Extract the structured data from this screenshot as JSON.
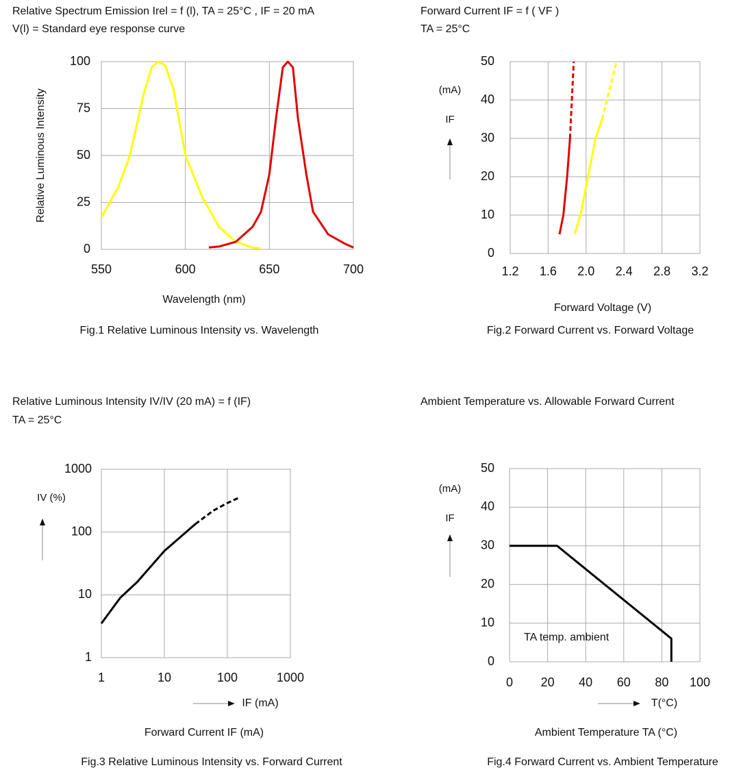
{
  "chart_data": [
    {
      "type": "line",
      "title": "Relative Spectrum Emission Irel = f (l), TA = 25°C , IF = 20 mA",
      "subtitle": "V(l) = Standard eye response curve",
      "ylabel": "Relative Luminous Intensity",
      "xlabel": "Wavelength (nm)",
      "caption": "Fig.1 Relative Luminous Intensity vs. Wavelength",
      "xlim": [
        550,
        700
      ],
      "xticks": [
        550,
        600,
        650,
        700
      ],
      "ylim": [
        0,
        100
      ],
      "yticks": [
        0,
        25,
        50,
        75,
        100
      ],
      "grid": true,
      "log": false,
      "series": [
        {
          "color": "#ffff00",
          "dash": false,
          "x": [
            550,
            560,
            567,
            575,
            580,
            584,
            588,
            593,
            600,
            610,
            620,
            630,
            640,
            645
          ],
          "values": [
            17,
            33,
            50,
            82,
            97,
            100,
            98,
            85,
            50,
            28,
            12,
            4,
            1,
            0.5
          ]
        },
        {
          "color": "#e00000",
          "dash": false,
          "x": [
            614,
            620,
            630,
            640,
            645,
            650,
            654,
            658,
            661,
            664,
            667,
            672,
            676,
            685,
            695,
            700
          ],
          "values": [
            1,
            1.5,
            4,
            12,
            20,
            40,
            70,
            97,
            100,
            97,
            70,
            40,
            20,
            8,
            3,
            1
          ]
        }
      ]
    },
    {
      "type": "line",
      "title": "Forward Current IF = f ( VF )",
      "subtitle": "TA = 25°C",
      "y_unit": "(mA)",
      "y_symbol": "IF",
      "xlabel": "Forward Voltage (V)",
      "caption": "Fig.2 Forward Current vs. Forward Voltage",
      "xlim": [
        1.2,
        3.2
      ],
      "xticks": [
        1.2,
        1.6,
        {
          "value": 2,
          "label": "2.0"
        },
        2.4,
        2.8,
        3.2
      ],
      "ylim": [
        0,
        50
      ],
      "yticks": [
        0,
        10,
        20,
        30,
        40,
        50
      ],
      "grid": true,
      "log": false,
      "series": [
        {
          "color": "#e00000",
          "dash": false,
          "x": [
            1.72,
            1.76,
            1.8,
            1.83
          ],
          "values": [
            5,
            10,
            20,
            30
          ]
        },
        {
          "color": "#e00000",
          "dash": true,
          "x": [
            1.83,
            1.85,
            1.87
          ],
          "values": [
            30,
            40,
            50
          ]
        },
        {
          "color": "#ffff00",
          "dash": false,
          "x": [
            1.88,
            1.94,
            2.02,
            2.1,
            2.17
          ],
          "values": [
            5,
            10,
            20,
            30,
            35
          ]
        },
        {
          "color": "#ffff00",
          "dash": true,
          "x": [
            2.17,
            2.24,
            2.32
          ],
          "values": [
            35,
            42,
            50
          ]
        }
      ]
    },
    {
      "type": "line",
      "title": "Relative Luminous Intensity IV/IV (20 mA) = f (IF)",
      "subtitle": "TA = 25°C",
      "y_unit": "IV (%)",
      "x_symbol": "IF (mA)",
      "xlabel": "Forward Current IF (mA)",
      "caption": "Fig.3 Relative Luminous Intensity vs. Forward Current",
      "xlim": [
        1,
        1000
      ],
      "xticks": [
        1,
        10,
        100,
        1000
      ],
      "ylim": [
        1,
        1000
      ],
      "yticks": [
        1,
        10,
        100,
        1000
      ],
      "grid": true,
      "log": true,
      "series": [
        {
          "color": "#000000",
          "dash": false,
          "x": [
            1,
            2,
            3.7,
            10,
            31
          ],
          "values": [
            3.5,
            9,
            16,
            50,
            134
          ]
        },
        {
          "color": "#000000",
          "dash": true,
          "x": [
            31,
            60,
            100,
            150
          ],
          "values": [
            134,
            220,
            290,
            350
          ]
        }
      ]
    },
    {
      "type": "line",
      "title": "Ambient Temperature vs. Allowable Forward Current",
      "y_unit": "(mA)",
      "y_symbol": "IF",
      "x_symbol": "T(°C)",
      "annotation": "TA temp. ambient",
      "xlabel": "Ambient Temperature TA (°C)",
      "caption": "Fig.4 Forward Current vs. Ambient Temperature",
      "xlim": [
        0,
        100
      ],
      "xticks": [
        0,
        20,
        40,
        60,
        80,
        100
      ],
      "ylim": [
        0,
        50
      ],
      "yticks": [
        0,
        10,
        20,
        30,
        40,
        50
      ],
      "grid": true,
      "log": false,
      "series": [
        {
          "color": "#000000",
          "dash": false,
          "x": [
            0,
            25,
            85,
            85
          ],
          "values": [
            30,
            30,
            6,
            0
          ]
        }
      ]
    }
  ]
}
